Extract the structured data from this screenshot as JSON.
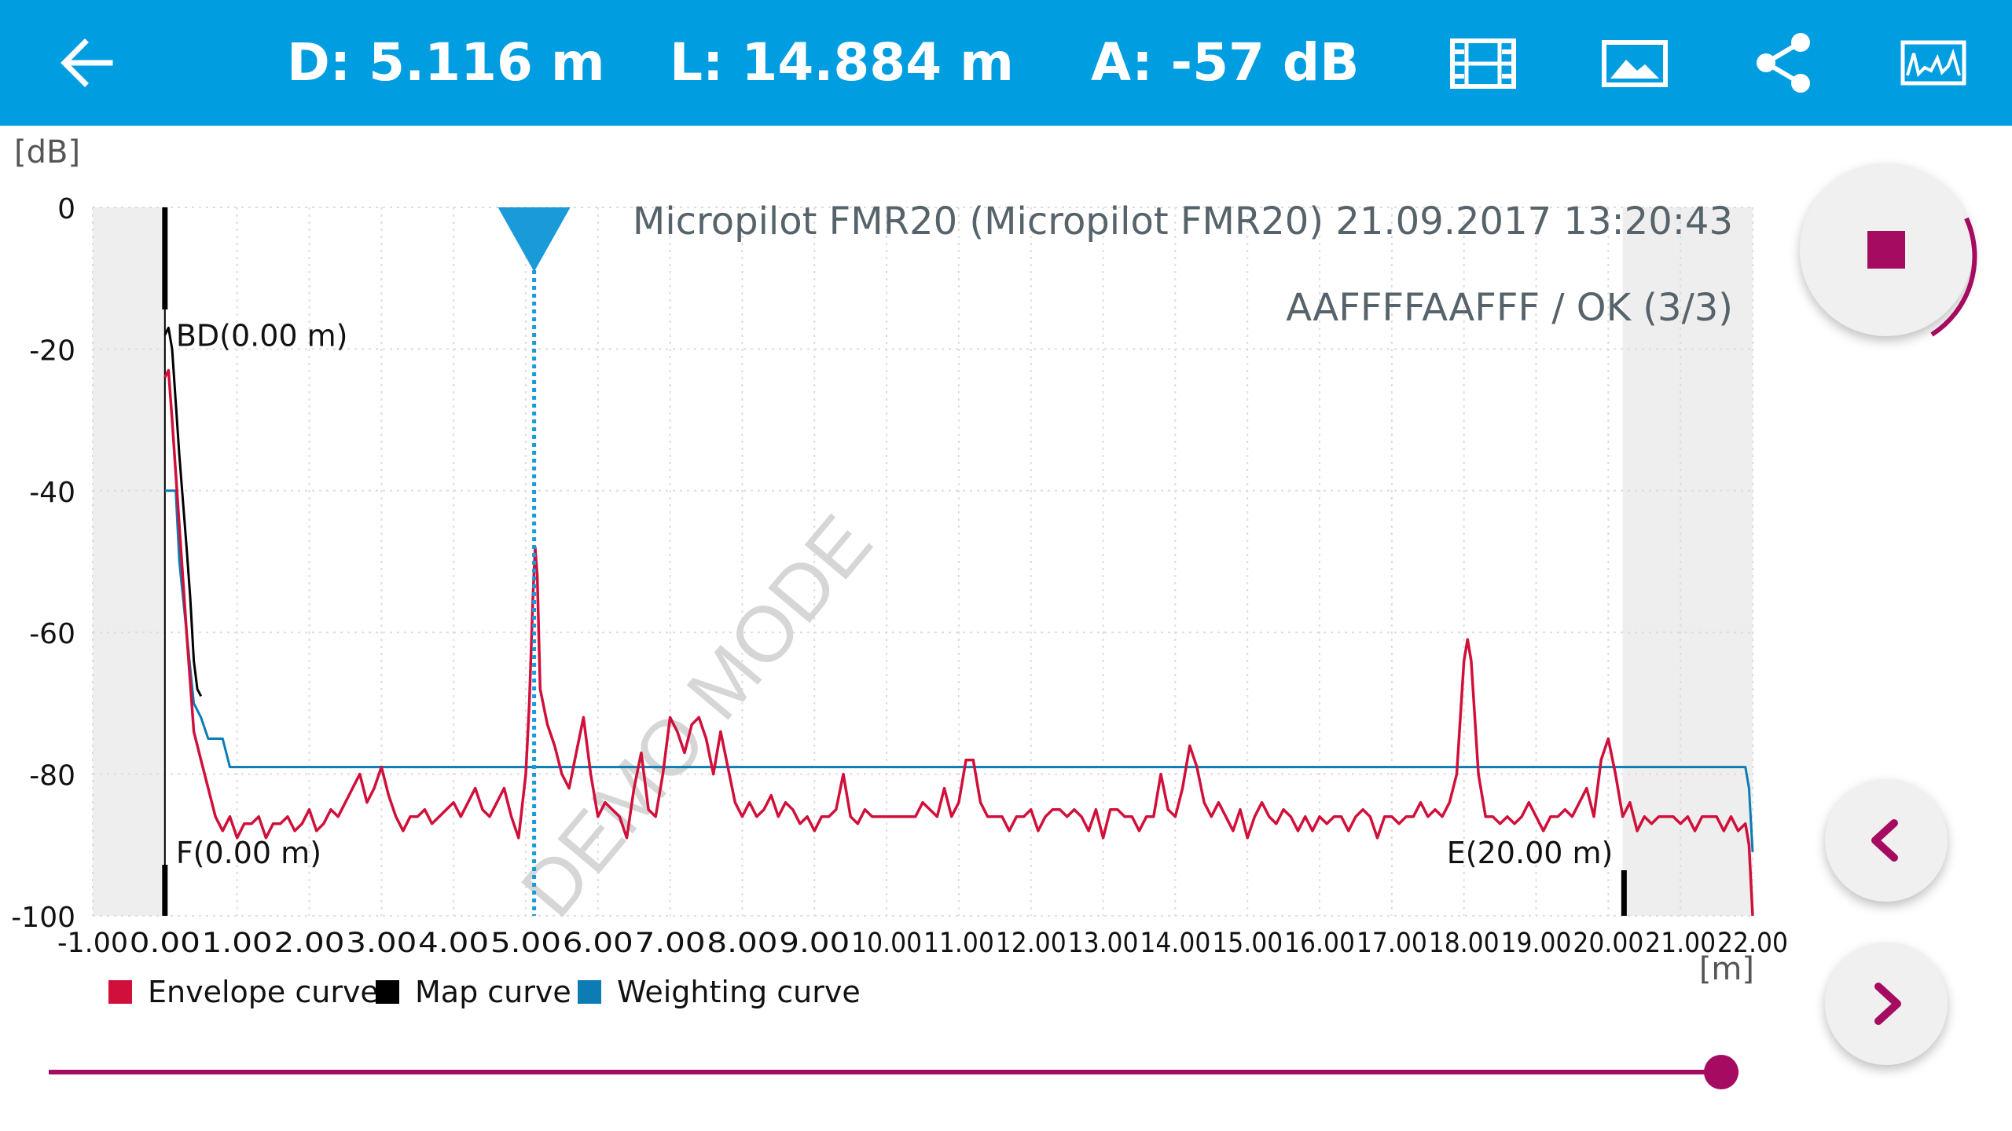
{
  "header": {
    "distance": "D: 5.116 m",
    "level": "L: 14.884 m",
    "amplitude": "A: -57 dB",
    "icons": [
      "back-arrow-icon",
      "film-icon",
      "image-icon",
      "share-icon",
      "echo-curve-icon"
    ]
  },
  "chart_data": {
    "type": "line",
    "title": "Micropilot FMR20 (Micropilot FMR20) 21.09.2017 13:20:43",
    "subtitle": "AAFFFFAAFFF / OK (3/3)",
    "watermark": "DEMO MODE",
    "ylabel": "[dB]",
    "xlabel": "[m]",
    "xlim": [
      -1.0,
      22.0
    ],
    "ylim": [
      -100,
      0
    ],
    "yticks": [
      "0",
      "-20",
      "-40",
      "-60",
      "-80",
      "-100"
    ],
    "xticks": [
      "-1.00",
      "0.00",
      "1.00",
      "2.00",
      "3.00",
      "4.00",
      "5.00",
      "6.00",
      "7.00",
      "8.00",
      "9.00",
      "10.00",
      "11.00",
      "12.00",
      "13.00",
      "14.00",
      "15.00",
      "16.00",
      "17.00",
      "18.00",
      "19.00",
      "20.00",
      "21.00",
      "22.00"
    ],
    "shaded_regions": [
      [
        -1.0,
        0.0
      ],
      [
        20.2,
        22.0
      ]
    ],
    "cursor_x": 5.116,
    "markers": [
      {
        "label": "BD(0.00 m)",
        "x": 0.0
      },
      {
        "label": "F(0.00 m)",
        "x": 0.0
      },
      {
        "label": "E(20.00 m)",
        "x": 20.0
      }
    ],
    "legend": [
      {
        "name": "Envelope curve",
        "color": "#d0103a"
      },
      {
        "name": "Map curve",
        "color": "#000000"
      },
      {
        "name": "Weighting curve",
        "color": "#0d7bb4"
      }
    ],
    "series": [
      {
        "name": "Envelope curve",
        "color": "#d0103a",
        "points": [
          [
            0.0,
            -24
          ],
          [
            0.05,
            -23
          ],
          [
            0.1,
            -30
          ],
          [
            0.2,
            -45
          ],
          [
            0.3,
            -60
          ],
          [
            0.4,
            -74
          ],
          [
            0.5,
            -78
          ],
          [
            0.6,
            -82
          ],
          [
            0.7,
            -86
          ],
          [
            0.8,
            -88
          ],
          [
            0.9,
            -86
          ],
          [
            1.0,
            -89
          ],
          [
            1.1,
            -87
          ],
          [
            1.2,
            -87
          ],
          [
            1.3,
            -86
          ],
          [
            1.4,
            -89
          ],
          [
            1.5,
            -87
          ],
          [
            1.6,
            -87
          ],
          [
            1.7,
            -86
          ],
          [
            1.8,
            -88
          ],
          [
            1.9,
            -87
          ],
          [
            2.0,
            -85
          ],
          [
            2.1,
            -88
          ],
          [
            2.2,
            -87
          ],
          [
            2.3,
            -85
          ],
          [
            2.4,
            -86
          ],
          [
            2.5,
            -84
          ],
          [
            2.6,
            -82
          ],
          [
            2.7,
            -80
          ],
          [
            2.8,
            -84
          ],
          [
            2.9,
            -82
          ],
          [
            3.0,
            -79
          ],
          [
            3.1,
            -83
          ],
          [
            3.2,
            -86
          ],
          [
            3.3,
            -88
          ],
          [
            3.4,
            -86
          ],
          [
            3.5,
            -86
          ],
          [
            3.6,
            -85
          ],
          [
            3.7,
            -87
          ],
          [
            3.8,
            -86
          ],
          [
            3.9,
            -85
          ],
          [
            4.0,
            -84
          ],
          [
            4.1,
            -86
          ],
          [
            4.2,
            -84
          ],
          [
            4.3,
            -82
          ],
          [
            4.4,
            -85
          ],
          [
            4.5,
            -86
          ],
          [
            4.6,
            -84
          ],
          [
            4.7,
            -82
          ],
          [
            4.8,
            -86
          ],
          [
            4.9,
            -89
          ],
          [
            5.0,
            -80
          ],
          [
            5.05,
            -70
          ],
          [
            5.1,
            -55
          ],
          [
            5.13,
            -48
          ],
          [
            5.16,
            -52
          ],
          [
            5.2,
            -68
          ],
          [
            5.3,
            -73
          ],
          [
            5.4,
            -76
          ],
          [
            5.5,
            -80
          ],
          [
            5.6,
            -82
          ],
          [
            5.7,
            -77
          ],
          [
            5.8,
            -72
          ],
          [
            5.9,
            -80
          ],
          [
            6.0,
            -86
          ],
          [
            6.1,
            -84
          ],
          [
            6.2,
            -85
          ],
          [
            6.3,
            -86
          ],
          [
            6.4,
            -89
          ],
          [
            6.5,
            -82
          ],
          [
            6.6,
            -77
          ],
          [
            6.7,
            -85
          ],
          [
            6.8,
            -86
          ],
          [
            6.9,
            -80
          ],
          [
            7.0,
            -72
          ],
          [
            7.1,
            -74
          ],
          [
            7.2,
            -77
          ],
          [
            7.3,
            -73
          ],
          [
            7.4,
            -72
          ],
          [
            7.5,
            -75
          ],
          [
            7.6,
            -80
          ],
          [
            7.7,
            -74
          ],
          [
            7.8,
            -79
          ],
          [
            7.9,
            -84
          ],
          [
            8.0,
            -86
          ],
          [
            8.1,
            -84
          ],
          [
            8.2,
            -86
          ],
          [
            8.3,
            -85
          ],
          [
            8.4,
            -83
          ],
          [
            8.5,
            -86
          ],
          [
            8.6,
            -84
          ],
          [
            8.7,
            -85
          ],
          [
            8.8,
            -87
          ],
          [
            8.9,
            -86
          ],
          [
            9.0,
            -88
          ],
          [
            9.1,
            -86
          ],
          [
            9.2,
            -86
          ],
          [
            9.3,
            -85
          ],
          [
            9.4,
            -80
          ],
          [
            9.5,
            -86
          ],
          [
            9.6,
            -87
          ],
          [
            9.7,
            -85
          ],
          [
            9.8,
            -86
          ],
          [
            9.9,
            -86
          ],
          [
            10.0,
            -86
          ],
          [
            10.2,
            -86
          ],
          [
            10.4,
            -86
          ],
          [
            10.5,
            -84
          ],
          [
            10.6,
            -85
          ],
          [
            10.7,
            -86
          ],
          [
            10.8,
            -82
          ],
          [
            10.9,
            -86
          ],
          [
            11.0,
            -84
          ],
          [
            11.1,
            -78
          ],
          [
            11.2,
            -78
          ],
          [
            11.3,
            -84
          ],
          [
            11.4,
            -86
          ],
          [
            11.5,
            -86
          ],
          [
            11.6,
            -86
          ],
          [
            11.7,
            -88
          ],
          [
            11.8,
            -86
          ],
          [
            11.9,
            -86
          ],
          [
            12.0,
            -85
          ],
          [
            12.1,
            -88
          ],
          [
            12.2,
            -86
          ],
          [
            12.3,
            -85
          ],
          [
            12.4,
            -85
          ],
          [
            12.5,
            -86
          ],
          [
            12.6,
            -85
          ],
          [
            12.7,
            -86
          ],
          [
            12.8,
            -88
          ],
          [
            12.9,
            -85
          ],
          [
            13.0,
            -89
          ],
          [
            13.1,
            -85
          ],
          [
            13.2,
            -85
          ],
          [
            13.3,
            -86
          ],
          [
            13.4,
            -86
          ],
          [
            13.5,
            -88
          ],
          [
            13.6,
            -86
          ],
          [
            13.7,
            -86
          ],
          [
            13.8,
            -80
          ],
          [
            13.9,
            -85
          ],
          [
            14.0,
            -86
          ],
          [
            14.1,
            -82
          ],
          [
            14.2,
            -76
          ],
          [
            14.3,
            -79
          ],
          [
            14.4,
            -84
          ],
          [
            14.5,
            -86
          ],
          [
            14.6,
            -84
          ],
          [
            14.7,
            -86
          ],
          [
            14.8,
            -88
          ],
          [
            14.9,
            -85
          ],
          [
            15.0,
            -89
          ],
          [
            15.1,
            -86
          ],
          [
            15.2,
            -84
          ],
          [
            15.3,
            -86
          ],
          [
            15.4,
            -87
          ],
          [
            15.5,
            -85
          ],
          [
            15.6,
            -86
          ],
          [
            15.7,
            -88
          ],
          [
            15.8,
            -86
          ],
          [
            15.9,
            -88
          ],
          [
            16.0,
            -86
          ],
          [
            16.1,
            -87
          ],
          [
            16.2,
            -86
          ],
          [
            16.3,
            -86
          ],
          [
            16.4,
            -88
          ],
          [
            16.5,
            -86
          ],
          [
            16.6,
            -85
          ],
          [
            16.7,
            -86
          ],
          [
            16.8,
            -89
          ],
          [
            16.9,
            -86
          ],
          [
            17.0,
            -86
          ],
          [
            17.1,
            -87
          ],
          [
            17.2,
            -86
          ],
          [
            17.3,
            -86
          ],
          [
            17.4,
            -84
          ],
          [
            17.5,
            -86
          ],
          [
            17.6,
            -85
          ],
          [
            17.7,
            -86
          ],
          [
            17.8,
            -84
          ],
          [
            17.9,
            -80
          ],
          [
            18.0,
            -64
          ],
          [
            18.05,
            -61
          ],
          [
            18.1,
            -64
          ],
          [
            18.2,
            -80
          ],
          [
            18.3,
            -86
          ],
          [
            18.4,
            -86
          ],
          [
            18.5,
            -87
          ],
          [
            18.6,
            -86
          ],
          [
            18.7,
            -87
          ],
          [
            18.8,
            -86
          ],
          [
            18.9,
            -84
          ],
          [
            19.0,
            -86
          ],
          [
            19.1,
            -88
          ],
          [
            19.2,
            -86
          ],
          [
            19.3,
            -86
          ],
          [
            19.4,
            -85
          ],
          [
            19.5,
            -86
          ],
          [
            19.6,
            -84
          ],
          [
            19.7,
            -82
          ],
          [
            19.8,
            -86
          ],
          [
            19.9,
            -78
          ],
          [
            20.0,
            -75
          ],
          [
            20.1,
            -80
          ],
          [
            20.2,
            -86
          ],
          [
            20.3,
            -84
          ],
          [
            20.4,
            -88
          ],
          [
            20.5,
            -86
          ],
          [
            20.6,
            -87
          ],
          [
            20.7,
            -86
          ],
          [
            20.8,
            -86
          ],
          [
            20.9,
            -86
          ],
          [
            21.0,
            -87
          ],
          [
            21.1,
            -86
          ],
          [
            21.2,
            -88
          ],
          [
            21.3,
            -86
          ],
          [
            21.4,
            -86
          ],
          [
            21.5,
            -86
          ],
          [
            21.6,
            -88
          ],
          [
            21.7,
            -86
          ],
          [
            21.8,
            -88
          ],
          [
            21.9,
            -87
          ],
          [
            21.95,
            -90
          ],
          [
            22.0,
            -100
          ]
        ]
      },
      {
        "name": "Map curve",
        "color": "#000000",
        "points": [
          [
            0.0,
            -18
          ],
          [
            0.05,
            -17
          ],
          [
            0.1,
            -20
          ],
          [
            0.2,
            -35
          ],
          [
            0.3,
            -48
          ],
          [
            0.35,
            -55
          ],
          [
            0.4,
            -64
          ],
          [
            0.45,
            -68
          ],
          [
            0.5,
            -69
          ]
        ]
      },
      {
        "name": "Weighting curve",
        "color": "#0d7bb4",
        "points": [
          [
            0.0,
            -40
          ],
          [
            0.15,
            -40
          ],
          [
            0.2,
            -50
          ],
          [
            0.3,
            -60
          ],
          [
            0.4,
            -70
          ],
          [
            0.5,
            -72
          ],
          [
            0.6,
            -75
          ],
          [
            0.8,
            -75
          ],
          [
            0.9,
            -79
          ],
          [
            1.0,
            -79
          ],
          [
            21.9,
            -79
          ],
          [
            21.95,
            -82
          ],
          [
            22.0,
            -91
          ]
        ]
      }
    ]
  },
  "controls": {
    "stop_button": "stop-icon",
    "prev_button": "chevron-left-icon",
    "next_button": "chevron-right-icon",
    "slider_position": 1.0,
    "accent_color": "#a50b60"
  }
}
